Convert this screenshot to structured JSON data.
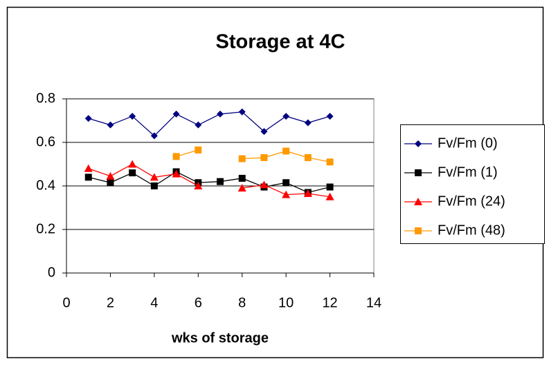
{
  "chart_data": {
    "type": "line",
    "title": "Storage at 4C",
    "x_label": "wks of storage",
    "x": [
      1,
      2,
      3,
      4,
      5,
      6,
      7,
      8,
      9,
      10,
      11,
      12
    ],
    "series": [
      {
        "name": "Fv/Fm (0)",
        "color": "#000080",
        "marker": "diamond",
        "values": [
          0.71,
          0.68,
          0.72,
          0.63,
          0.73,
          0.68,
          0.73,
          0.74,
          0.65,
          0.72,
          0.69,
          0.72
        ]
      },
      {
        "name": "Fv/Fm (1)",
        "color": "#000000",
        "marker": "square",
        "values": [
          0.44,
          0.415,
          0.46,
          0.4,
          0.465,
          0.415,
          0.42,
          0.435,
          0.395,
          0.415,
          0.37,
          0.395
        ]
      },
      {
        "name": "Fv/Fm (24)",
        "color": "#ff0000",
        "marker": "triangle",
        "values": [
          0.48,
          0.445,
          0.5,
          0.44,
          0.455,
          0.4,
          null,
          0.39,
          0.405,
          0.36,
          0.365,
          0.35
        ]
      },
      {
        "name": "Fv/Fm (48)",
        "color": "#ff9900",
        "marker": "square",
        "values": [
          null,
          null,
          null,
          null,
          0.535,
          0.565,
          null,
          0.525,
          0.53,
          0.56,
          0.53,
          0.51
        ]
      }
    ],
    "xlim": [
      0,
      14
    ],
    "xticks": [
      0,
      2,
      4,
      6,
      8,
      10,
      12,
      14
    ],
    "ylim": [
      0,
      0.8
    ],
    "yticks": [
      0,
      0.2,
      0.4,
      0.6,
      0.8
    ],
    "grid": true,
    "legend": "right"
  }
}
